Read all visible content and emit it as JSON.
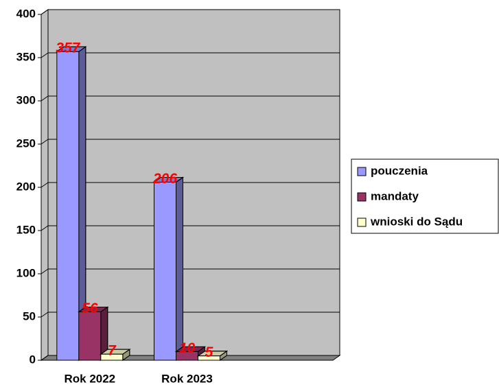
{
  "chart_data": {
    "type": "bar3d",
    "categories": [
      "Rok 2022",
      "Rok 2023",
      null
    ],
    "series": [
      {
        "name": "pouczenia",
        "color": "#9999ff",
        "values": [
          357,
          206,
          null
        ]
      },
      {
        "name": "mandaty",
        "color": "#993366",
        "values": [
          56,
          10,
          null
        ]
      },
      {
        "name": "wnioski do Sądu",
        "color": "#ffffcc",
        "values": [
          7,
          5,
          null
        ]
      }
    ],
    "ylim": [
      0,
      400
    ],
    "yticks": [
      0,
      50,
      100,
      150,
      200,
      250,
      300,
      350,
      400
    ],
    "grid": true,
    "legend": "right",
    "label_color": "#ff0000",
    "wall_color": "#c0c0c0"
  }
}
